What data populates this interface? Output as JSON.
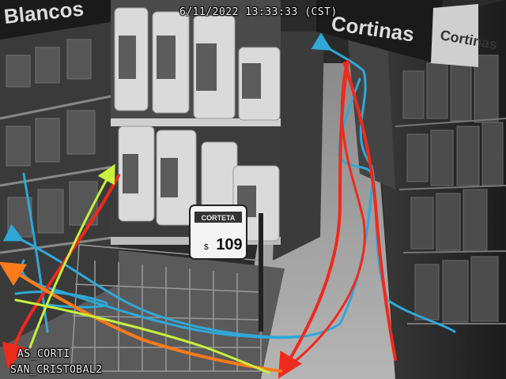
{
  "overlay": {
    "timestamp": "6/11/2022 13:33:33 (CST)",
    "camera_line1": "AS_CORTI",
    "camera_line2": "SAN_CRISTOBAL2"
  },
  "store_signs": {
    "left": "Blancos",
    "center": "Cortinas",
    "right": "Cortinas"
  },
  "price_tag": {
    "brand": "CORTETA",
    "price": "109",
    "currency": "$"
  },
  "trajectory_colors": {
    "blue": "#2fa8d8",
    "red": "#ee2a1c",
    "orange": "#ff7a1a",
    "yellow": "#c8f03c"
  }
}
